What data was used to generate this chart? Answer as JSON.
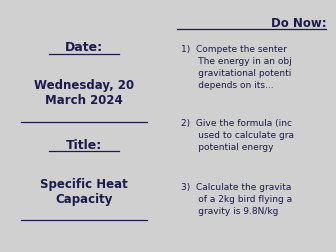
{
  "bg_color": "#d0d0d0",
  "left_panel_bg": "#ffffcc",
  "right_panel_bg": "#ffffcc",
  "border_color": "#2b2b5e",
  "text_color": "#1a1a4e",
  "date_label": "Date:",
  "date_value": "Wednesday, 20\nMarch 2024",
  "title_label": "Title:",
  "title_value": "Specific Heat\nCapacity",
  "do_now_heading": "Do Now:",
  "item1": "1)  Compete the senter\n      The energy in an obj\n      gravitational potenti\n      depends on its...",
  "item2": "2)  Give the formula (inc\n      used to calculate gra\n      potential energy",
  "item3": "3)  Calculate the gravita\n      of a 2kg bird flying a\n      gravity is 9.8N/kg"
}
